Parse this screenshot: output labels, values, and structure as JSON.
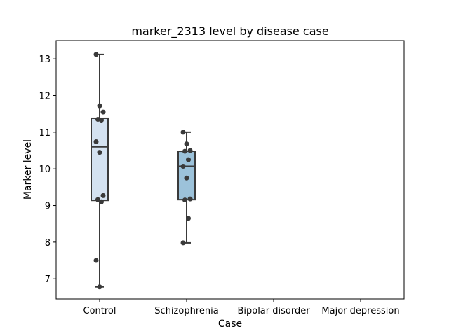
{
  "chart_data": {
    "type": "box",
    "title": "marker_2313 level by disease case",
    "xlabel": "Case",
    "ylabel": "Marker level",
    "categories": [
      "Control",
      "Schizophrenia",
      "Bipolar disorder",
      "Major depression"
    ],
    "ylim": [
      6.45,
      13.5
    ],
    "yticks": [
      7,
      8,
      9,
      10,
      11,
      12,
      13
    ],
    "grid": false,
    "box_colors": [
      "#d4e2f1",
      "#9cc2da"
    ],
    "series": [
      {
        "category": "Control",
        "box": {
          "whisker_low": 6.78,
          "q1": 9.14,
          "median": 10.6,
          "q3": 11.38,
          "whisker_high": 13.12
        },
        "points": [
          13.12,
          11.72,
          11.55,
          11.35,
          11.33,
          10.74,
          10.45,
          9.27,
          9.16,
          9.1,
          7.5,
          6.78
        ]
      },
      {
        "category": "Schizophrenia",
        "box": {
          "whisker_low": 7.98,
          "q1": 9.16,
          "median": 10.07,
          "q3": 10.48,
          "whisker_high": 11.0
        },
        "points": [
          11.0,
          10.68,
          10.5,
          10.48,
          10.25,
          10.07,
          9.75,
          9.18,
          9.15,
          8.65,
          7.98
        ]
      },
      {
        "category": "Bipolar disorder",
        "box": null,
        "points": []
      },
      {
        "category": "Major depression",
        "box": null,
        "points": []
      }
    ]
  }
}
